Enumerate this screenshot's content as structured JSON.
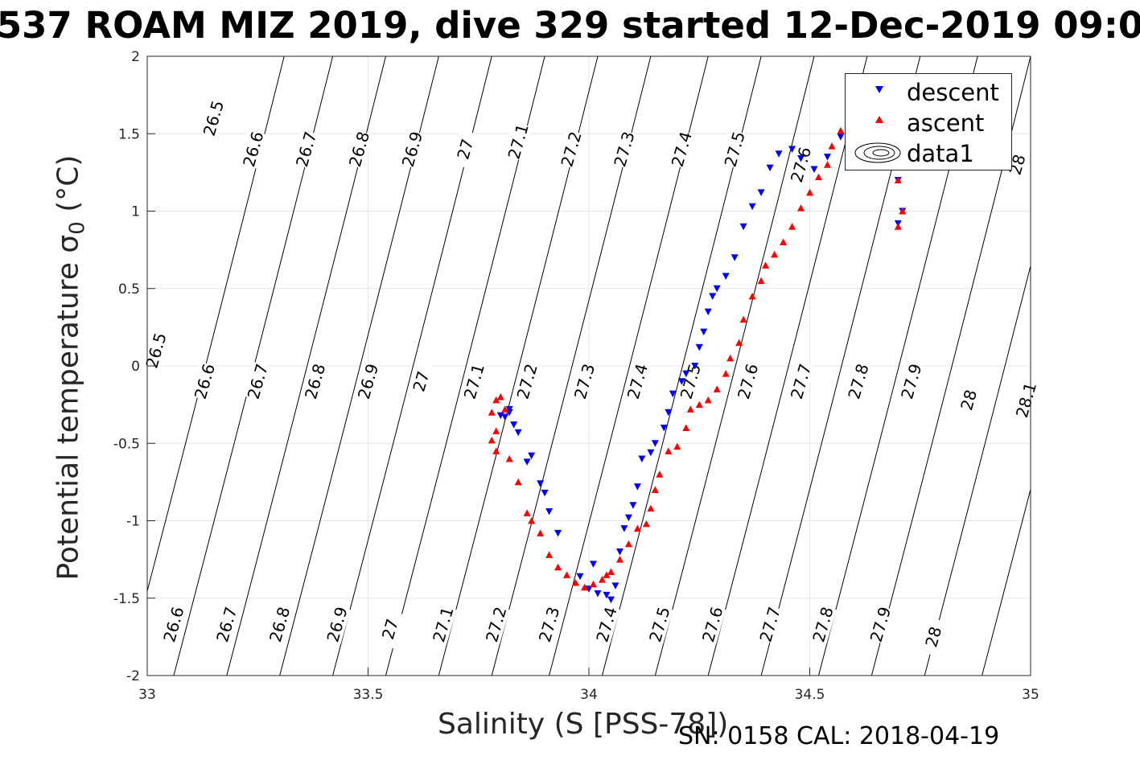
{
  "title": "537 ROAM MIZ 2019, dive 329 started 12-Dec-2019 09:0",
  "footer": "SN: 0158  CAL: 2018-04-19",
  "colors": {
    "descent": "#0000ff",
    "ascent": "#ff0000",
    "grid": "#e6e6e6",
    "axis": "#262626"
  },
  "chart_data": {
    "type": "scatter",
    "xlabel": "Salinity (S [PSS-78])",
    "ylabel_main": "Potential temperature ",
    "ylabel_sigma": "σ",
    "ylabel_sub": "0",
    "ylabel_unit": " (°C)",
    "xlim": [
      33,
      35
    ],
    "ylim": [
      -2,
      2
    ],
    "xticks": [
      33,
      33.5,
      34,
      34.5,
      35
    ],
    "xtick_labels": [
      "33",
      "33.5",
      "34",
      "34.5",
      "35"
    ],
    "yticks": [
      -2,
      -1.5,
      -1,
      -0.5,
      0,
      0.5,
      1,
      1.5,
      2
    ],
    "ytick_labels": [
      "-2",
      "-1.5",
      "-1",
      "-0.5",
      "0",
      "0.5",
      "1",
      "1.5",
      "2"
    ],
    "grid": true,
    "legend": {
      "placement": "top-right",
      "entries": [
        "descent",
        "ascent",
        "data1"
      ]
    },
    "density_contours": {
      "levels": [
        26.5,
        26.6,
        26.7,
        26.8,
        26.9,
        27,
        27.1,
        27.2,
        27.3,
        27.4,
        27.5,
        27.6,
        27.7,
        27.8,
        27.9,
        28,
        28.1
      ],
      "salinity_at_minus2C": [
        32.95,
        33.06,
        33.18,
        33.3,
        33.42,
        33.54,
        33.66,
        33.78,
        33.91,
        34.03,
        34.15,
        34.27,
        34.39,
        34.52,
        34.64,
        34.76,
        34.89
      ],
      "slope_dS_dT": 0.09,
      "labels": [
        {
          "text": "26.5",
          "s": 33.15,
          "t": 1.6
        },
        {
          "text": "26.6",
          "s": 33.24,
          "t": 1.4
        },
        {
          "text": "26.7",
          "s": 33.36,
          "t": 1.4
        },
        {
          "text": "26.8",
          "s": 33.48,
          "t": 1.4
        },
        {
          "text": "26.9",
          "s": 33.6,
          "t": 1.4
        },
        {
          "text": "27",
          "s": 33.72,
          "t": 1.4
        },
        {
          "text": "27.1",
          "s": 33.84,
          "t": 1.45
        },
        {
          "text": "27.2",
          "s": 33.96,
          "t": 1.4
        },
        {
          "text": "27.3",
          "s": 34.08,
          "t": 1.4
        },
        {
          "text": "27.4",
          "s": 34.21,
          "t": 1.4
        },
        {
          "text": "27.5",
          "s": 34.33,
          "t": 1.4
        },
        {
          "text": "27.6",
          "s": 34.48,
          "t": 1.3
        },
        {
          "text": "28",
          "s": 34.97,
          "t": 1.3
        },
        {
          "text": "26.5",
          "s": 33.02,
          "t": 0.1
        },
        {
          "text": "26.6",
          "s": 33.13,
          "t": -0.1
        },
        {
          "text": "26.7",
          "s": 33.25,
          "t": -0.1
        },
        {
          "text": "26.8",
          "s": 33.38,
          "t": -0.1
        },
        {
          "text": "26.9",
          "s": 33.5,
          "t": -0.1
        },
        {
          "text": "27",
          "s": 33.62,
          "t": -0.1
        },
        {
          "text": "27.1",
          "s": 33.74,
          "t": -0.1
        },
        {
          "text": "27.2",
          "s": 33.86,
          "t": -0.1
        },
        {
          "text": "27.3",
          "s": 33.99,
          "t": -0.1
        },
        {
          "text": "27.4",
          "s": 34.11,
          "t": -0.1
        },
        {
          "text": "27.5",
          "s": 34.23,
          "t": -0.1
        },
        {
          "text": "27.6",
          "s": 34.36,
          "t": -0.1
        },
        {
          "text": "27.7",
          "s": 34.48,
          "t": -0.1
        },
        {
          "text": "27.8",
          "s": 34.61,
          "t": -0.1
        },
        {
          "text": "27.9",
          "s": 34.73,
          "t": -0.1
        },
        {
          "text": "28",
          "s": 34.86,
          "t": -0.22
        },
        {
          "text": "28.1",
          "s": 34.99,
          "t": -0.22
        },
        {
          "text": "26.6",
          "s": 33.06,
          "t": -1.67
        },
        {
          "text": "26.7",
          "s": 33.18,
          "t": -1.67
        },
        {
          "text": "26.8",
          "s": 33.3,
          "t": -1.67
        },
        {
          "text": "26.9",
          "s": 33.43,
          "t": -1.67
        },
        {
          "text": "27",
          "s": 33.55,
          "t": -1.7
        },
        {
          "text": "27.1",
          "s": 33.67,
          "t": -1.67
        },
        {
          "text": "27.2",
          "s": 33.79,
          "t": -1.67
        },
        {
          "text": "27.3",
          "s": 33.91,
          "t": -1.67
        },
        {
          "text": "27.4",
          "s": 34.04,
          "t": -1.67
        },
        {
          "text": "27.5",
          "s": 34.16,
          "t": -1.67
        },
        {
          "text": "27.6",
          "s": 34.28,
          "t": -1.67
        },
        {
          "text": "27.7",
          "s": 34.41,
          "t": -1.67
        },
        {
          "text": "27.8",
          "s": 34.53,
          "t": -1.67
        },
        {
          "text": "27.9",
          "s": 34.66,
          "t": -1.67
        },
        {
          "text": "28",
          "s": 34.78,
          "t": -1.75
        }
      ]
    },
    "series": [
      {
        "name": "descent",
        "marker": "triangle-down",
        "points": [
          [
            33.82,
            -0.3
          ],
          [
            33.8,
            -0.32
          ],
          [
            33.83,
            -0.38
          ],
          [
            33.84,
            -0.43
          ],
          [
            33.82,
            -0.28
          ],
          [
            33.81,
            -0.33
          ],
          [
            33.86,
            -0.62
          ],
          [
            33.87,
            -0.58
          ],
          [
            33.89,
            -0.76
          ],
          [
            33.9,
            -0.82
          ],
          [
            33.91,
            -0.94
          ],
          [
            33.93,
            -1.08
          ],
          [
            33.98,
            -1.36
          ],
          [
            34.0,
            -1.44
          ],
          [
            34.01,
            -1.28
          ],
          [
            34.02,
            -1.47
          ],
          [
            34.04,
            -1.48
          ],
          [
            34.05,
            -1.51
          ],
          [
            34.06,
            -1.42
          ],
          [
            34.07,
            -1.2
          ],
          [
            34.08,
            -1.05
          ],
          [
            34.09,
            -0.98
          ],
          [
            34.1,
            -0.9
          ],
          [
            34.11,
            -0.78
          ],
          [
            34.12,
            -0.6
          ],
          [
            34.14,
            -0.56
          ],
          [
            34.15,
            -0.5
          ],
          [
            34.17,
            -0.4
          ],
          [
            34.18,
            -0.3
          ],
          [
            34.19,
            -0.18
          ],
          [
            34.21,
            -0.1
          ],
          [
            34.22,
            -0.05
          ],
          [
            34.24,
            0.0
          ],
          [
            34.25,
            0.12
          ],
          [
            34.26,
            0.22
          ],
          [
            34.27,
            0.35
          ],
          [
            34.28,
            0.45
          ],
          [
            34.29,
            0.5
          ],
          [
            34.31,
            0.58
          ],
          [
            34.33,
            0.7
          ],
          [
            34.35,
            0.9
          ],
          [
            34.37,
            1.03
          ],
          [
            34.39,
            1.12
          ],
          [
            34.41,
            1.28
          ],
          [
            34.43,
            1.37
          ],
          [
            34.46,
            1.4
          ],
          [
            34.48,
            1.34
          ],
          [
            34.51,
            1.27
          ],
          [
            34.54,
            1.35
          ],
          [
            34.57,
            1.48
          ],
          [
            34.6,
            1.55
          ],
          [
            34.65,
            1.58
          ],
          [
            34.69,
            1.55
          ],
          [
            34.71,
            1.4
          ],
          [
            34.7,
            1.2
          ],
          [
            34.71,
            1.0
          ],
          [
            34.7,
            0.92
          ]
        ]
      },
      {
        "name": "ascent",
        "marker": "triangle-up",
        "points": [
          [
            33.78,
            -0.48
          ],
          [
            33.79,
            -0.42
          ],
          [
            33.78,
            -0.3
          ],
          [
            33.79,
            -0.22
          ],
          [
            33.8,
            -0.2
          ],
          [
            33.81,
            -0.28
          ],
          [
            33.79,
            -0.55
          ],
          [
            33.82,
            -0.6
          ],
          [
            33.84,
            -0.75
          ],
          [
            33.86,
            -0.95
          ],
          [
            33.87,
            -1.0
          ],
          [
            33.89,
            -1.08
          ],
          [
            33.91,
            -1.22
          ],
          [
            33.93,
            -1.3
          ],
          [
            33.95,
            -1.35
          ],
          [
            33.97,
            -1.4
          ],
          [
            33.99,
            -1.43
          ],
          [
            34.01,
            -1.41
          ],
          [
            34.03,
            -1.38
          ],
          [
            34.04,
            -1.35
          ],
          [
            34.05,
            -1.33
          ],
          [
            34.07,
            -1.25
          ],
          [
            34.09,
            -1.15
          ],
          [
            34.11,
            -1.05
          ],
          [
            34.13,
            -1.02
          ],
          [
            34.14,
            -0.92
          ],
          [
            34.15,
            -0.8
          ],
          [
            34.16,
            -0.7
          ],
          [
            34.18,
            -0.55
          ],
          [
            34.2,
            -0.52
          ],
          [
            34.22,
            -0.4
          ],
          [
            34.23,
            -0.28
          ],
          [
            34.25,
            -0.25
          ],
          [
            34.27,
            -0.22
          ],
          [
            34.29,
            -0.15
          ],
          [
            34.31,
            -0.05
          ],
          [
            34.32,
            0.05
          ],
          [
            34.34,
            0.15
          ],
          [
            34.35,
            0.3
          ],
          [
            34.37,
            0.45
          ],
          [
            34.39,
            0.55
          ],
          [
            34.4,
            0.65
          ],
          [
            34.42,
            0.72
          ],
          [
            34.44,
            0.8
          ],
          [
            34.46,
            0.9
          ],
          [
            34.48,
            1.02
          ],
          [
            34.5,
            1.12
          ],
          [
            34.52,
            1.22
          ],
          [
            34.54,
            1.3
          ],
          [
            34.55,
            1.42
          ],
          [
            34.57,
            1.52
          ],
          [
            34.59,
            1.6
          ],
          [
            34.62,
            1.68
          ],
          [
            34.66,
            1.68
          ],
          [
            34.69,
            1.5
          ],
          [
            34.7,
            1.2
          ],
          [
            34.71,
            1.0
          ],
          [
            34.7,
            0.9
          ]
        ]
      }
    ]
  }
}
